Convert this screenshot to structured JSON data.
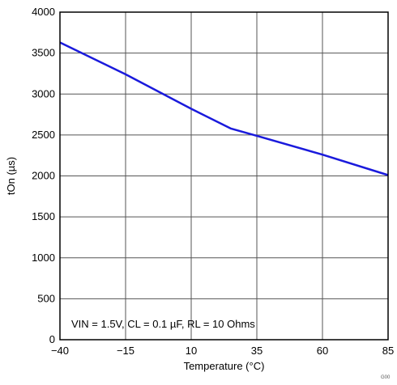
{
  "chart_data": {
    "type": "line",
    "title": "",
    "xlabel": "Temperature (°C)",
    "ylabel": "tOn (µs)",
    "xlim": [
      -40,
      85
    ],
    "ylim": [
      0,
      4000
    ],
    "xticks": [
      -40,
      -15,
      10,
      35,
      60,
      85
    ],
    "xtick_labels": [
      "−40",
      "−15",
      "10",
      "35",
      "60",
      "85"
    ],
    "yticks": [
      0,
      500,
      1000,
      1500,
      2000,
      2500,
      3000,
      3500,
      4000
    ],
    "ytick_labels": [
      "0",
      "500",
      "1000",
      "1500",
      "2000",
      "2500",
      "3000",
      "3500",
      "4000"
    ],
    "grid": true,
    "series": [
      {
        "color": "#1a1adc",
        "x": [
          -40,
          -15,
          10,
          25,
          35,
          60,
          85
        ],
        "y": [
          3630,
          3240,
          2820,
          2580,
          2490,
          2260,
          2010
        ]
      }
    ],
    "annotation": "VIN = 1.5V, CL = 0.1 µF, RL = 10 Ohms",
    "figure_id": "G00"
  }
}
